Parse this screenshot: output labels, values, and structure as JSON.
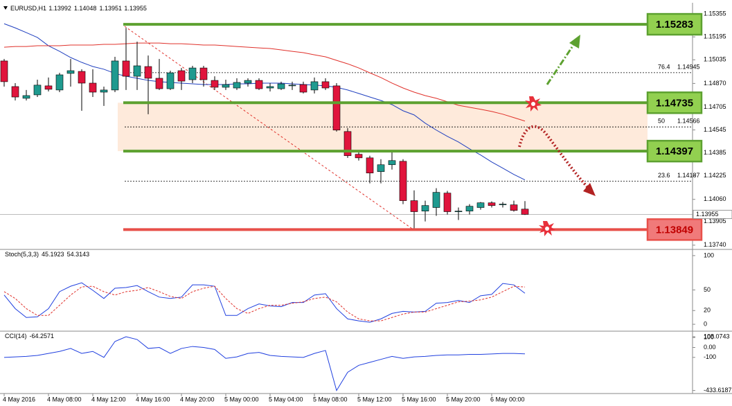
{
  "chart_data": [
    {
      "type": "candlestick",
      "title": "EURUSD,H1",
      "categories": [
        "4 May 2016",
        null,
        null,
        null,
        "4 May 08:00",
        null,
        null,
        null,
        "4 May 12:00",
        null,
        null,
        null,
        "4 May 16:00",
        null,
        null,
        null,
        "4 May 20:00",
        null,
        null,
        null,
        "5 May 00:00",
        null,
        null,
        null,
        "5 May 04:00",
        null,
        null,
        null,
        "5 May 08:00",
        null,
        null,
        null,
        "5 May 12:00",
        null,
        null,
        null,
        "5 May 16:00",
        null,
        null,
        null,
        "5 May 20:00",
        null,
        null,
        null,
        "6 May 00:00",
        null,
        null,
        null
      ],
      "ohlc": [
        [
          1.15027,
          1.15041,
          1.14848,
          1.14882
        ],
        [
          1.14848,
          1.14872,
          1.14751,
          1.14775
        ],
        [
          1.14766,
          1.14824,
          1.14751,
          1.14785
        ],
        [
          1.1479,
          1.14896,
          1.14775,
          1.14858
        ],
        [
          1.14853,
          1.14911,
          1.14814,
          1.14829
        ],
        [
          1.14824,
          1.14944,
          1.14809,
          1.1493
        ],
        [
          1.1494,
          1.15041,
          1.14848,
          1.14959
        ],
        [
          1.14954,
          1.14969,
          1.14679,
          1.14872
        ],
        [
          1.14872,
          1.14969,
          1.14775,
          1.14809
        ],
        [
          1.14809,
          1.14848,
          1.14713,
          1.14824
        ],
        [
          1.14824,
          1.15056,
          1.14809,
          1.15027
        ],
        [
          1.15027,
          1.15258,
          1.14824,
          1.1492
        ],
        [
          1.1492,
          1.15162,
          1.14824,
          1.14993
        ],
        [
          1.14988,
          1.15065,
          1.14655,
          1.14906
        ],
        [
          1.14906,
          1.15041,
          1.14824,
          1.14833
        ],
        [
          1.14833,
          1.14959,
          1.14824,
          1.14944
        ],
        [
          1.14959,
          1.14978,
          1.14824,
          1.14886
        ],
        [
          1.14896,
          1.14993,
          1.14872,
          1.14978
        ],
        [
          1.14978,
          1.14993,
          1.14848,
          1.14896
        ],
        [
          1.14891,
          1.1492,
          1.14824,
          1.14843
        ],
        [
          1.14843,
          1.14896,
          1.14824,
          1.14862
        ],
        [
          1.14838,
          1.14906,
          1.14824,
          1.14877
        ],
        [
          1.14872,
          1.14906,
          1.14848,
          1.14891
        ],
        [
          1.14891,
          1.14906,
          1.14824,
          1.14833
        ],
        [
          1.14838,
          1.14872,
          1.14814,
          1.14848
        ],
        [
          1.14833,
          1.14882,
          1.14824,
          1.14867
        ],
        [
          1.14853,
          1.14882,
          1.14824,
          1.14858
        ],
        [
          1.14862,
          1.14882,
          1.148,
          1.14809
        ],
        [
          1.14824,
          1.14911,
          1.148,
          1.14882
        ],
        [
          1.14882,
          1.14906,
          1.14824,
          1.14838
        ],
        [
          1.14853,
          1.14872,
          1.14534,
          1.14544
        ],
        [
          1.14534,
          1.14558,
          1.1435,
          1.14365
        ],
        [
          1.14375,
          1.14399,
          1.14331,
          1.1435
        ],
        [
          1.1435,
          1.14365,
          1.14172,
          1.14244
        ],
        [
          1.14254,
          1.14341,
          1.14172,
          1.14302
        ],
        [
          1.14302,
          1.14399,
          1.14268,
          1.14331
        ],
        [
          1.14326,
          1.14341,
          1.14027,
          1.14051
        ],
        [
          1.14051,
          1.14123,
          1.13858,
          1.13974
        ],
        [
          1.13978,
          1.14051,
          1.13906,
          1.14017
        ],
        [
          1.14003,
          1.14138,
          1.13945,
          1.14109
        ],
        [
          1.14104,
          1.14119,
          1.13954,
          1.13974
        ],
        [
          1.13974,
          1.14003,
          1.13916,
          1.13978
        ],
        [
          1.13978,
          1.14027,
          1.13954,
          1.14012
        ],
        [
          1.14003,
          1.14041,
          1.13988,
          1.14036
        ],
        [
          1.14036,
          1.14046,
          1.14003,
          1.14017
        ],
        [
          1.14022,
          1.14041,
          1.14003,
          1.14027
        ],
        [
          1.14022,
          1.14051,
          1.13974,
          1.13983
        ],
        [
          1.13992,
          1.14048,
          1.13951,
          1.13955
        ]
      ],
      "up_color": "#1f9a8f",
      "down_color": "#e0143c",
      "moving_averages": [
        {
          "color": "#1f3fbf",
          "values": [
            1.15287,
            1.15258,
            1.15225,
            1.15191,
            1.15133,
            1.15094,
            1.15051,
            1.15017,
            1.14988,
            1.14969,
            1.1494,
            1.1492,
            1.14906,
            1.14891,
            1.14882,
            1.14877,
            1.14872,
            1.14867,
            1.14862,
            1.14862,
            1.14862,
            1.14867,
            1.14867,
            1.14872,
            1.14872,
            1.14872,
            1.14867,
            1.14862,
            1.14858,
            1.14853,
            1.14843,
            1.14824,
            1.148,
            1.14775,
            1.14751,
            1.14722,
            1.14679,
            1.1465,
            1.14592,
            1.14544,
            1.145,
            1.14461,
            1.14413,
            1.1437,
            1.14321,
            1.14278,
            1.14234,
            1.14196
          ]
        },
        {
          "color": "#e0302a",
          "values": [
            1.15123,
            1.15128,
            1.15128,
            1.15133,
            1.15133,
            1.15133,
            1.15138,
            1.15138,
            1.15138,
            1.15143,
            1.15143,
            1.15147,
            1.15152,
            1.15152,
            1.15152,
            1.15147,
            1.15147,
            1.15143,
            1.15138,
            1.15138,
            1.15133,
            1.15128,
            1.15123,
            1.15118,
            1.15114,
            1.15104,
            1.15094,
            1.15085,
            1.1507,
            1.15056,
            1.15031,
            1.15007,
            1.14978,
            1.14944,
            1.14911,
            1.14872,
            1.14838,
            1.14809,
            1.14785,
            1.14766,
            1.14742,
            1.14717,
            1.14703,
            1.14689,
            1.14674,
            1.14655,
            1.14631,
            1.14607
          ]
        }
      ],
      "levels": [
        {
          "value": 1.15283,
          "color": "#5da130",
          "box_color": "#92d050",
          "text_color": "#000000"
        },
        {
          "value": 1.14735,
          "color": "#5da130",
          "box_color": "#92d050",
          "text_color": "#000000"
        },
        {
          "value": 1.14397,
          "color": "#5da130",
          "box_color": "#92d050",
          "text_color": "#000000"
        },
        {
          "value": 1.13849,
          "color": "#e8504a",
          "box_color": "#f07a7a",
          "text_color": "#c00000"
        }
      ],
      "zone_color": "#fde3cf",
      "fibonacci": [
        {
          "level": 76.4,
          "price": 1.14945
        },
        {
          "level": 50.0,
          "price": 1.14566
        },
        {
          "level": 23.6,
          "price": 1.14187
        }
      ],
      "ylim": [
        1.1372,
        1.15414
      ],
      "yticks": [
        1.15355,
        1.15195,
        1.15035,
        {
          "value": 1.1487,
          "label": "1.14870"
        },
        1.14705,
        1.14545,
        1.14385,
        1.14225,
        {
          "value": 1.1406,
          "label": "1.14060"
        },
        1.13905,
        {
          "value": 1.1374,
          "label": "1.13740"
        }
      ]
    },
    {
      "type": "line",
      "title": "Stoch(5,3,3)",
      "series": [
        {
          "color": "#1f3fdf",
          "dashed": false,
          "values": [
            42.6,
            22.8,
            9.9,
            10.9,
            22.8,
            47.5,
            55.4,
            60.4,
            49.5,
            37.6,
            52.5,
            53.5,
            56.4,
            47.5,
            39.6,
            37.6,
            39.6,
            57.4,
            57.4,
            55.4,
            12.9,
            12.9,
            22.8,
            29.7,
            26.7,
            25.7,
            31.7,
            31.7,
            42.6,
            44.6,
            22.8,
            7.9,
            5,
            3,
            7.9,
            15.8,
            18.8,
            17.8,
            18.8,
            30.7,
            31.7,
            34.7,
            31.7,
            41.6,
            43.6,
            59.4,
            57.4,
            45.1923
          ]
        },
        {
          "color": "#e0302a",
          "dashed": true,
          "values": [
            47.5,
            37.6,
            22.8,
            12.9,
            12.9,
            27.7,
            42.6,
            54.5,
            55.4,
            47.5,
            42.6,
            47.5,
            49.5,
            53.5,
            47.5,
            40.6,
            37.6,
            47.5,
            52.5,
            55.4,
            37.6,
            22.8,
            15.8,
            22.8,
            27.7,
            27.7,
            30.7,
            32.7,
            37.6,
            39.6,
            32.7,
            17.8,
            7.9,
            5,
            5,
            9.9,
            14.9,
            17.8,
            17.8,
            22.8,
            27.7,
            32.7,
            33.7,
            35.6,
            39.6,
            47.5,
            55.4,
            54.3143
          ]
        }
      ],
      "ylim": [
        -8,
        107
      ],
      "yticks": [
        100,
        50,
        20,
        0
      ]
    },
    {
      "type": "line",
      "title": "CCI(14)",
      "series": [
        {
          "color": "#1f3fdf",
          "dashed": false,
          "values": [
            -100,
            -95,
            -90,
            -80,
            -60,
            -40,
            -10,
            -60,
            -40,
            -100,
            60,
            108.0743,
            80,
            -10,
            0,
            -60,
            -10,
            10,
            0,
            -20,
            -110,
            -95,
            -60,
            -50,
            -80,
            -90,
            -95,
            -100,
            -60,
            -30,
            -433.6187,
            -250,
            -180,
            -150,
            -120,
            -90,
            -110,
            -95,
            -90,
            -80,
            -75,
            -75,
            -70,
            -70,
            -65,
            -60,
            -60,
            -64.2571
          ]
        }
      ],
      "ylim": [
        -450,
        150
      ],
      "yticks": [
        108.0743,
        100,
        {
          "value": 0,
          "label": "0.00"
        },
        -100,
        -433.6187
      ]
    }
  ]
}
